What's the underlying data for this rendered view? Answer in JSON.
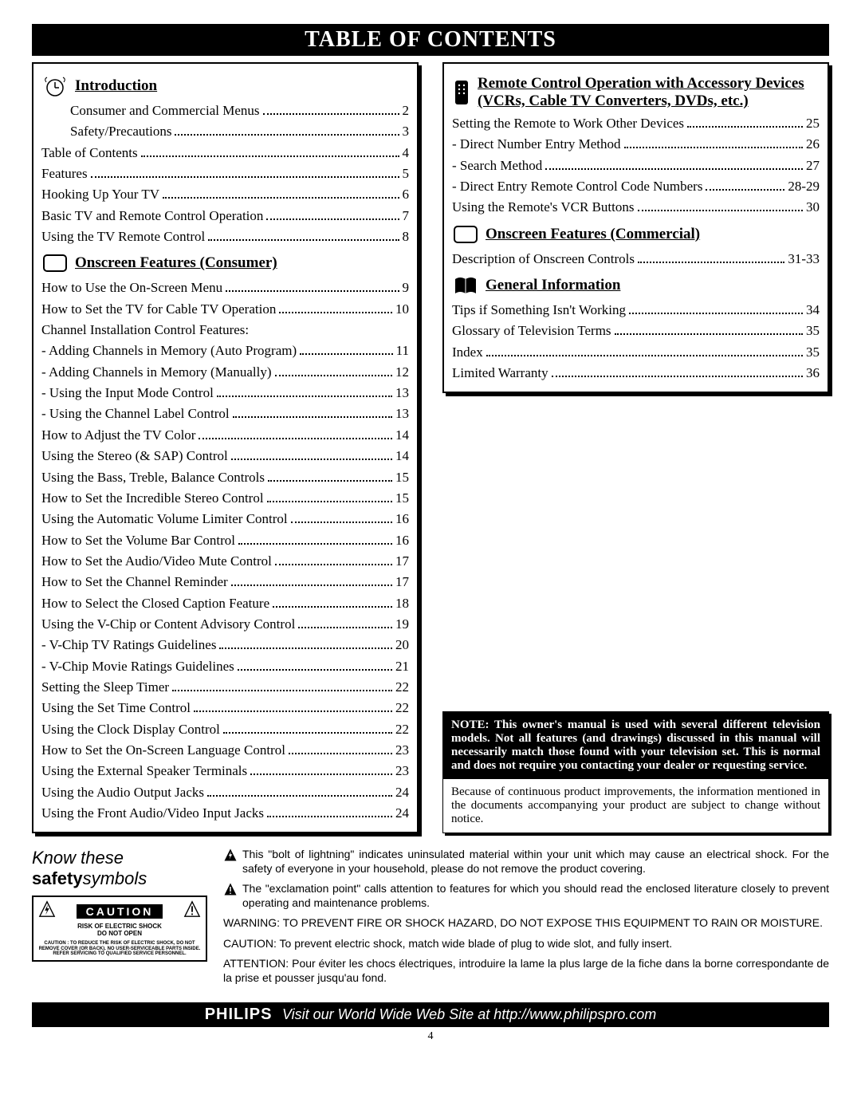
{
  "page": {
    "title": "TABLE OF CONTENTS",
    "number": "4"
  },
  "left_box": {
    "sections": [
      {
        "title": "Introduction",
        "icon": "clock-icon",
        "items": [
          {
            "label": "Consumer and Commercial Menus",
            "page": "2",
            "indent": 1
          },
          {
            "label": "Safety/Precautions",
            "page": "3",
            "indent": 1
          },
          {
            "label": "Table of Contents",
            "page": "4",
            "indent": 0
          },
          {
            "label": "Features",
            "page": "5",
            "indent": 0
          },
          {
            "label": "Hooking Up Your TV",
            "page": "6",
            "indent": 0
          },
          {
            "label": "Basic TV and Remote Control Operation",
            "page": "7",
            "indent": 0
          },
          {
            "label": "Using the TV Remote Control",
            "page": "8",
            "indent": 0
          }
        ]
      },
      {
        "title": "Onscreen Features (Consumer)",
        "icon": "tv-icon",
        "items": [
          {
            "label": "How to Use the On-Screen Menu",
            "page": "9",
            "indent": 0
          },
          {
            "label": "How to Set the TV for Cable TV Operation",
            "page": "10",
            "indent": 0
          },
          {
            "label": "Channel Installation Control Features:",
            "page": "",
            "indent": 0
          },
          {
            "label": "- Adding Channels in Memory  (Auto Program)",
            "page": "11",
            "indent": 0
          },
          {
            "label": "- Adding Channels in Memory (Manually)",
            "page": "12",
            "indent": 0
          },
          {
            "label": "- Using the Input Mode Control",
            "page": "13",
            "indent": 0
          },
          {
            "label": "- Using the Channel Label Control",
            "page": "13",
            "indent": 0
          },
          {
            "label": "How to Adjust the TV Color",
            "page": "14",
            "indent": 0
          },
          {
            "label": "Using the Stereo (& SAP) Control",
            "page": "14",
            "indent": 0
          },
          {
            "label": "Using the Bass, Treble, Balance Controls",
            "page": "15",
            "indent": 0
          },
          {
            "label": "How to Set the Incredible Stereo Control",
            "page": "15",
            "indent": 0
          },
          {
            "label": "Using the Automatic Volume Limiter Control",
            "page": "16",
            "indent": 0
          },
          {
            "label": "How to Set the Volume Bar Control",
            "page": "16",
            "indent": 0
          },
          {
            "label": "How to Set the Audio/Video Mute Control",
            "page": "17",
            "indent": 0
          },
          {
            "label": "How to Set the Channel Reminder",
            "page": "17",
            "indent": 0
          },
          {
            "label": "How to Select the Closed Caption Feature",
            "page": "18",
            "indent": 0
          },
          {
            "label": "Using the V-Chip or Content Advisory Control",
            "page": "19",
            "indent": 0
          },
          {
            "label": "- V-Chip TV Ratings Guidelines",
            "page": "20",
            "indent": 0
          },
          {
            "label": "- V-Chip Movie Ratings Guidelines",
            "page": "21",
            "indent": 0
          },
          {
            "label": "Setting the Sleep Timer",
            "page": "22",
            "indent": 0
          },
          {
            "label": "Using the Set Time Control",
            "page": "22",
            "indent": 0
          },
          {
            "label": "Using the Clock Display Control",
            "page": "22",
            "indent": 0
          },
          {
            "label": "How to Set the On-Screen Language Control",
            "page": "23",
            "indent": 0
          },
          {
            "label": "Using the External Speaker Terminals",
            "page": "23",
            "indent": 0
          },
          {
            "label": "Using the Audio Output Jacks",
            "page": "24",
            "indent": 0
          },
          {
            "label": "Using the Front Audio/Video Input Jacks",
            "page": "24",
            "indent": 0
          }
        ]
      }
    ]
  },
  "right_box": {
    "sections": [
      {
        "title": "Remote Control Operation with Accessory Devices (VCRs, Cable TV Converters, DVDs, etc.)",
        "icon": "remote-icon",
        "items": [
          {
            "label": "Setting the Remote to Work Other Devices",
            "page": "25",
            "indent": 0
          },
          {
            "label": "- Direct Number Entry Method",
            "page": "26",
            "indent": 0
          },
          {
            "label": "- Search Method",
            "page": "27",
            "indent": 0
          },
          {
            "label": "- Direct Entry Remote Control Code Numbers",
            "page": "28-29",
            "indent": 0
          },
          {
            "label": "Using the Remote's VCR Buttons",
            "page": "30",
            "indent": 0
          }
        ]
      },
      {
        "title": "Onscreen Features (Commercial)",
        "icon": "tv-icon",
        "items": [
          {
            "label": "Description of Onscreen Controls",
            "page": "31-33",
            "indent": 0
          }
        ]
      },
      {
        "title": "General Information",
        "icon": "book-icon",
        "items": [
          {
            "label": "Tips if Something Isn't Working",
            "page": "34",
            "indent": 0
          },
          {
            "label": "Glossary of Television Terms",
            "page": "35",
            "indent": 0
          },
          {
            "label": "Index",
            "page": "35",
            "indent": 0
          },
          {
            "label": "Limited Warranty",
            "page": "36",
            "indent": 0
          }
        ]
      }
    ]
  },
  "notes": {
    "black": "NOTE: This owner's manual is used with several different television models. Not all features (and  drawings) discussed in this manual will necessarily match those found with your television set. This is normal and does not require you contacting your dealer or requesting service.",
    "white": "Because of continuous product improvements, the information mentioned in the documents accompanying your product are subject to change without notice."
  },
  "safety": {
    "heading1": "Know these",
    "heading2_bold": "safety",
    "heading2_ital": "symbols",
    "caution_label": "CAUTION",
    "caution_mid1": "RISK OF ELECTRIC SHOCK",
    "caution_mid2": "DO NOT OPEN",
    "caution_small": "CAUTION : TO REDUCE THE RISK OF ELECTRIC SHOCK, DO NOT REMOVE COVER (OR BACK). NO USER-SERVICEABLE PARTS INSIDE. REFER SERVICING TO QUALIFIED SERVICE PERSONNEL.",
    "bolt": "This \"bolt of lightning\" indicates uninsulated material within your unit which may cause an electrical shock. For the safety of everyone in your household, please do not remove the product covering.",
    "excl": "The \"exclamation point\" calls attention to features for which you should read the enclosed literature closely to prevent operating and maintenance problems.",
    "warn": "WARNING: TO PREVENT FIRE OR SHOCK HAZARD, DO NOT EXPOSE THIS EQUIPMENT TO RAIN OR MOISTURE.",
    "caution_en": "CAUTION: To prevent electric shock, match wide blade of plug to wide slot, and fully insert.",
    "caution_fr": "ATTENTION: Pour éviter les chocs électriques, introduire la lame la plus large de la fiche dans la borne correspondante de la prise et pousser jusqu'au fond."
  },
  "footer": {
    "brand": "PHILIPS",
    "text": "Visit our World Wide Web Site at http://www.philipspro.com"
  }
}
